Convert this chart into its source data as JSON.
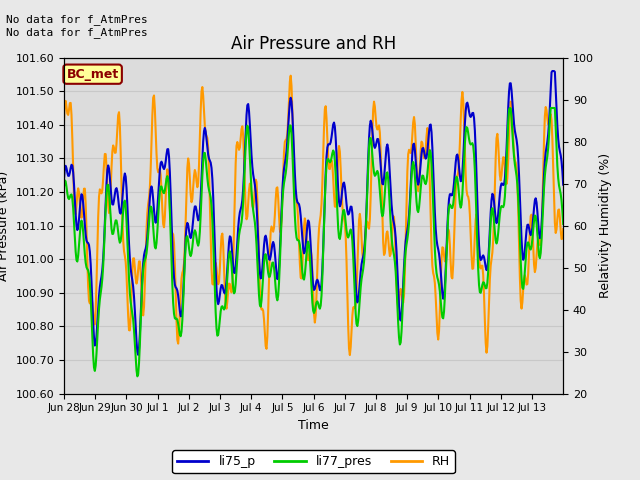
{
  "title": "Air Pressure and RH",
  "xlabel": "Time",
  "ylabel_left": "Air Pressure (kPa)",
  "ylabel_right": "Relativity Humidity (%)",
  "ylim_left": [
    100.6,
    101.6
  ],
  "ylim_right": [
    20,
    100
  ],
  "yticks_left": [
    100.6,
    100.7,
    100.8,
    100.9,
    101.0,
    101.1,
    101.2,
    101.3,
    101.4,
    101.5,
    101.6
  ],
  "yticks_right": [
    20,
    30,
    40,
    50,
    60,
    70,
    80,
    90,
    100
  ],
  "bg_color": "#e8e8e8",
  "plot_bg_color": "#dcdcdc",
  "line_colors": {
    "li75_p": "#0000cc",
    "li77_pres": "#00cc00",
    "RH": "#ff9900"
  },
  "line_widths": {
    "li75_p": 1.5,
    "li77_pres": 1.5,
    "RH": 1.5
  },
  "annotation_text": "No data for f_AtmPres\nNo data for f_AtmPres",
  "box_label": "BC_met",
  "box_facecolor": "#ffff99",
  "box_edgecolor": "#8b0000",
  "box_textcolor": "#8b0000",
  "xtick_labels": [
    "Jun 28",
    "Jun 29",
    "Jun 30",
    "Jul 1",
    "Jul 2",
    "Jul 3",
    "Jul 4",
    "Jul 5",
    "Jul 6",
    "Jul 7",
    "Jul 8",
    "Jul 9",
    "Jul 10",
    "Jul 11",
    "Jul 12",
    "Jul 13"
  ],
  "grid_color": "#c8c8c8",
  "legend_labels": [
    "li75_p",
    "li77_pres",
    "RH"
  ],
  "figsize": [
    6.4,
    4.8
  ],
  "dpi": 100,
  "subplots_adjust": [
    0.1,
    0.18,
    0.88,
    0.88
  ]
}
